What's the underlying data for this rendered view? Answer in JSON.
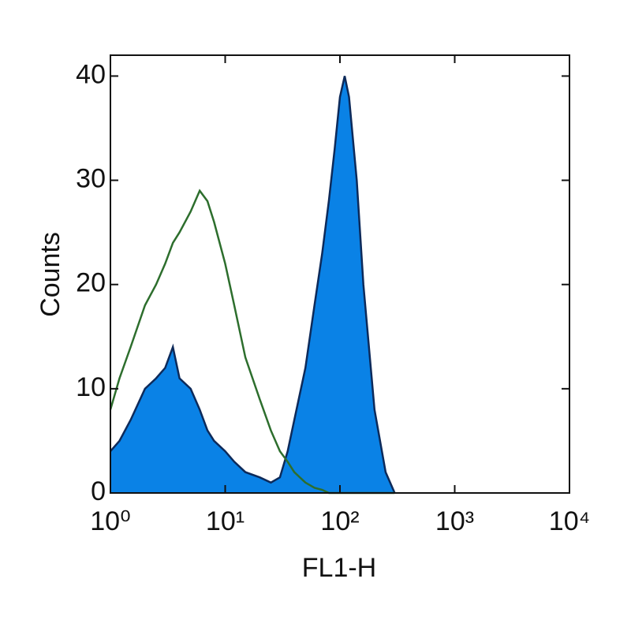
{
  "chart_data": {
    "type": "histogram-overlay",
    "xlabel": "FL1-H",
    "ylabel": "Counts",
    "xscale": "log",
    "x": [
      1,
      1.2,
      1.5,
      2,
      2.5,
      3,
      3.5,
      4,
      5,
      6,
      7,
      8,
      10,
      12,
      15,
      20,
      25,
      30,
      35,
      40,
      50,
      60,
      70,
      80,
      90,
      100,
      110,
      120,
      140,
      160,
      200,
      250,
      300
    ],
    "series": [
      {
        "color": "#0a82e6",
        "edge_color": "#0d2a5a",
        "filled": true,
        "values": [
          4,
          5,
          7,
          10,
          11,
          12,
          14,
          11,
          10,
          8,
          6,
          5,
          4,
          3,
          2,
          1.5,
          1,
          1.5,
          4,
          7,
          12,
          18,
          23,
          28,
          33,
          38,
          40,
          38,
          30,
          20,
          8,
          2,
          0
        ]
      },
      {
        "color": "#2d6e2d",
        "filled": false,
        "values": [
          8,
          11,
          14,
          18,
          20,
          22,
          24,
          25,
          27,
          29,
          28,
          26,
          22,
          18,
          13,
          9,
          6,
          4,
          3,
          2,
          1,
          0.5,
          0.3,
          0,
          0,
          0,
          0,
          0,
          0,
          0,
          0,
          0,
          0
        ]
      }
    ],
    "xlim": [
      1,
      10000
    ],
    "xticks": [
      {
        "value": 1,
        "label": "10⁰"
      },
      {
        "value": 10,
        "label": "10¹"
      },
      {
        "value": 100,
        "label": "10²"
      },
      {
        "value": 1000,
        "label": "10³"
      },
      {
        "value": 10000,
        "label": "10⁴"
      }
    ],
    "ylim": [
      0,
      42
    ],
    "yticks": [
      0,
      10,
      20,
      30,
      40
    ]
  }
}
